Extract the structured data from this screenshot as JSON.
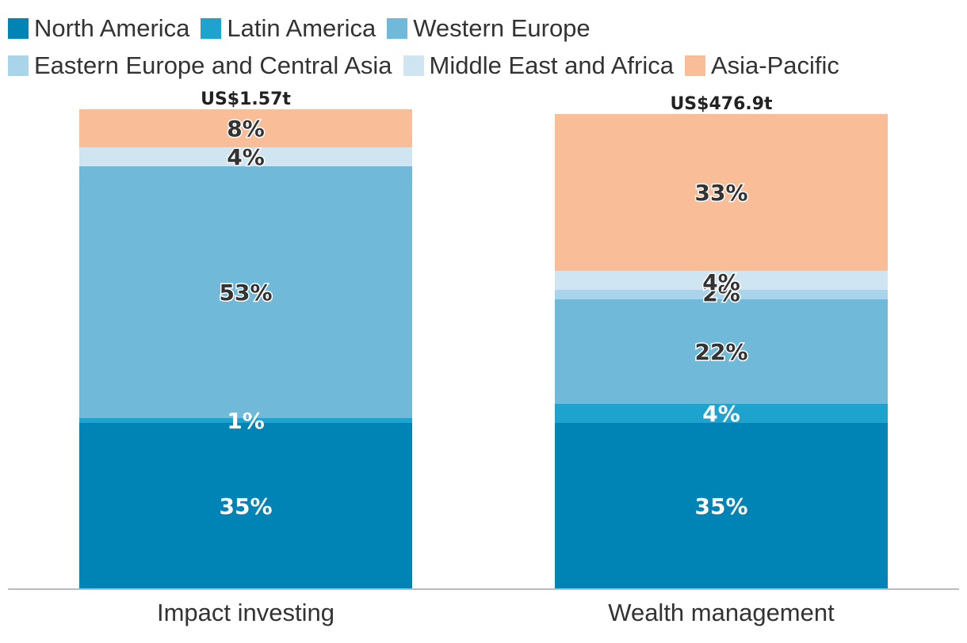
{
  "chart_data": {
    "type": "stacked-bar",
    "title": "",
    "xlabel": "",
    "ylabel": "",
    "ylim": [
      0,
      100
    ],
    "categories": [
      "Impact investing",
      "Wealth management"
    ],
    "totals": [
      "US$1.57t",
      "US$476.9t"
    ],
    "series": [
      {
        "name": "North America",
        "color": "#0083b5",
        "label_color": "#ffffff",
        "values": [
          35,
          35
        ],
        "labels": [
          "35%",
          "35%"
        ]
      },
      {
        "name": "Latin America",
        "color": "#1ea3cf",
        "label_color": "#ffffff",
        "values": [
          1,
          4
        ],
        "labels": [
          "1%",
          "4%"
        ]
      },
      {
        "name": "Western Europe",
        "color": "#70b9d9",
        "label_color": "#333333",
        "values": [
          53,
          22
        ],
        "labels": [
          "53%",
          "22%"
        ]
      },
      {
        "name": "Eastern Europe and Central Asia",
        "color": "#a9d4ea",
        "label_color": "#333333",
        "values": [
          0,
          2
        ],
        "labels": [
          "",
          "2%"
        ]
      },
      {
        "name": "Middle East and Africa",
        "color": "#cfe5f2",
        "label_color": "#333333",
        "values": [
          4,
          4
        ],
        "labels": [
          "4%",
          "4%"
        ]
      },
      {
        "name": "Asia-Pacific",
        "color": "#f9bd97",
        "label_color": "#333333",
        "values": [
          8,
          33
        ],
        "labels": [
          "8%",
          "33%"
        ]
      }
    ],
    "axis_color": "#bbbbbb"
  }
}
